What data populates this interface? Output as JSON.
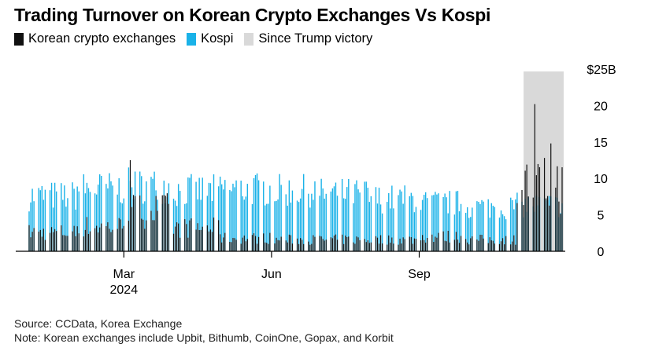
{
  "title": "Trading Turnover on Korean Crypto Exchanges Vs Kospi",
  "legend": [
    {
      "label": "Korean crypto exchanges",
      "color": "#111111"
    },
    {
      "label": "Kospi",
      "color": "#1ab2e8"
    },
    {
      "label": "Since Trump victory",
      "color": "#d9d9d9"
    }
  ],
  "source": "Source: CCData, Korea Exchange",
  "note": "Note: Korean exchanges include Upbit, Bithumb, CoinOne, Gopax, and Korbit",
  "chart_data": {
    "type": "bar",
    "unit": "$B",
    "ylim": [
      0,
      25
    ],
    "yticks": [
      {
        "value": 0,
        "label": "0"
      },
      {
        "value": 5,
        "label": "5"
      },
      {
        "value": 10,
        "label": "10"
      },
      {
        "value": 15,
        "label": "15"
      },
      {
        "value": 20,
        "label": "20"
      },
      {
        "value": 25,
        "label": "$25B"
      }
    ],
    "xticks": [
      {
        "date": "2024-03-01",
        "label": "Mar",
        "sublabel": "2024"
      },
      {
        "date": "2024-06-01",
        "label": "Jun",
        "sublabel": ""
      },
      {
        "date": "2024-09-01",
        "label": "Sep",
        "sublabel": ""
      }
    ],
    "date_range": [
      "2024-01-02",
      "2024-11-29"
    ],
    "shaded_range": {
      "label": "Since Trump victory",
      "start": "2024-11-06",
      "end": "2024-11-29"
    },
    "series": [
      {
        "name": "Kospi",
        "color": "#1ab2e8",
        "monthly_avg": [
          {
            "month": "2024-01",
            "value": 7.6
          },
          {
            "month": "2024-02",
            "value": 8.6
          },
          {
            "month": "2024-03",
            "value": 9.0
          },
          {
            "month": "2024-04",
            "value": 8.3
          },
          {
            "month": "2024-05",
            "value": 8.5
          },
          {
            "month": "2024-06",
            "value": 8.3
          },
          {
            "month": "2024-07",
            "value": 7.9
          },
          {
            "month": "2024-08",
            "value": 7.2
          },
          {
            "month": "2024-09",
            "value": 6.6
          },
          {
            "month": "2024-10",
            "value": 6.1
          },
          {
            "month": "2024-11",
            "value": 6.3
          }
        ]
      },
      {
        "name": "Korean crypto exchanges",
        "color": "#111111",
        "monthly_avg": [
          {
            "month": "2024-01",
            "value": 2.6
          },
          {
            "month": "2024-02",
            "value": 3.4
          },
          {
            "month": "2024-03",
            "value": 5.6
          },
          {
            "month": "2024-04",
            "value": 3.2
          },
          {
            "month": "2024-05",
            "value": 1.8
          },
          {
            "month": "2024-06",
            "value": 1.6
          },
          {
            "month": "2024-07",
            "value": 1.6
          },
          {
            "month": "2024-08",
            "value": 1.6
          },
          {
            "month": "2024-09",
            "value": 2.0
          },
          {
            "month": "2024-10",
            "value": 1.6
          },
          {
            "month": "2024-11",
            "value": 9.0
          }
        ],
        "peaks": [
          {
            "date": "2024-03-05",
            "value": 12.5
          },
          {
            "date": "2024-11-12",
            "value": 20.2
          },
          {
            "date": "2024-11-22",
            "value": 14.8
          }
        ]
      }
    ]
  }
}
